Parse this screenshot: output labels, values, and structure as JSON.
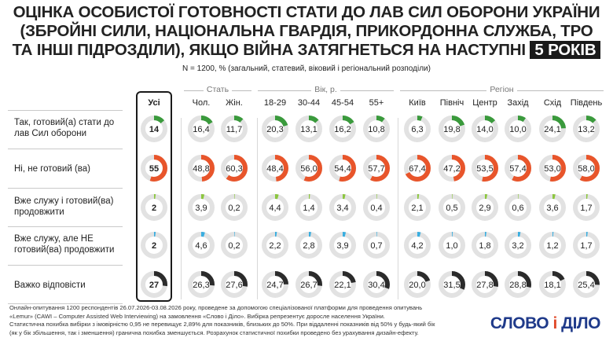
{
  "title": {
    "line1": "Оцінка особистої готовності стати до лав Сил оборони України",
    "line2": "(Збройні сили, Національна гвардія, Прикордонна служба, ТрО",
    "line3": "та інші підрозділи), якщо війна затягнеться на наступні",
    "highlight": "5 років"
  },
  "subtitle": "N = 1200, % (загальний, статевий, віковий і регіональний розподіли)",
  "chart_data": {
    "type": "donut-table",
    "groups": [
      {
        "name": "",
        "columns": [
          "Усі"
        ]
      },
      {
        "name": "Стать",
        "columns": [
          "Чол.",
          "Жін."
        ]
      },
      {
        "name": "Вік, р.",
        "columns": [
          "18-29",
          "30-44",
          "45-54",
          "55+"
        ]
      },
      {
        "name": "Регіон",
        "columns": [
          "Київ",
          "Північ",
          "Центр",
          "Захід",
          "Схід",
          "Південь"
        ]
      }
    ],
    "rows": [
      {
        "label": "Так, готовий(а) стати до лав Сил оборони",
        "color": "#3a9a3c",
        "values": [
          "14",
          "16,4",
          "11,7",
          "20,3",
          "13,1",
          "16,2",
          "10,8",
          "6,3",
          "19,8",
          "14,0",
          "10,0",
          "24,1",
          "13,2"
        ]
      },
      {
        "label": "Ні, не готовий (ва)",
        "color": "#e8552b",
        "values": [
          "55",
          "48,8",
          "60,3",
          "48,4",
          "56,0",
          "54,4",
          "57,7",
          "67,4",
          "47,2",
          "53,5",
          "57,4",
          "53,0",
          "58,0"
        ]
      },
      {
        "label": "Вже служу і готовий(ва) продовжити",
        "color": "#8cc63f",
        "values": [
          "2",
          "3,9",
          "0,2",
          "4,4",
          "1,4",
          "3,4",
          "0,4",
          "2,1",
          "0,5",
          "2,9",
          "0,6",
          "3,6",
          "1,7"
        ]
      },
      {
        "label": "Вже служу, але НЕ готовий(ва) продовжити",
        "color": "#3aaee0",
        "values": [
          "2",
          "4,6",
          "0,2",
          "2,2",
          "2,8",
          "3,9",
          "0,7",
          "4,2",
          "1,0",
          "1,8",
          "3,2",
          "1,2",
          "1,7"
        ]
      },
      {
        "label": "Важко відповісти",
        "color": "#2b2b2b",
        "values": [
          "27",
          "26,3",
          "27,6",
          "24,7",
          "26,7",
          "22,1",
          "30,4",
          "20,0",
          "31,5",
          "27,8",
          "28,8",
          "18,1",
          "25,4"
        ]
      }
    ],
    "track_color": "#e2e2e2"
  },
  "footer": {
    "line1": "Онлайн-опитування 1200 респондентів 26.07.2026-03.08.2026 року, проведене за допомогою спеціалізованої платформи для проведення опитувань",
    "line2": "«Lemur» (CAWI – Computer Assisted Web Interviewing) на замовлення «Слово і Діло». Вибірка репрезентує доросле населення України.",
    "line3": "Статистична похибка вибірки з імовірністю 0,95 не перевищує 2,89% для показників, близьких до 50%. При віддаленні показників від 50% у будь-який бік",
    "line4": "(як у бік збільшення, так і зменшення) гранична похибка зменшується. Розрахунок статистичної похибки проведено без урахування дизайн-ефекту."
  },
  "logo": {
    "left": "СЛОВО",
    "mid": "і",
    "right": "ДІЛО"
  }
}
